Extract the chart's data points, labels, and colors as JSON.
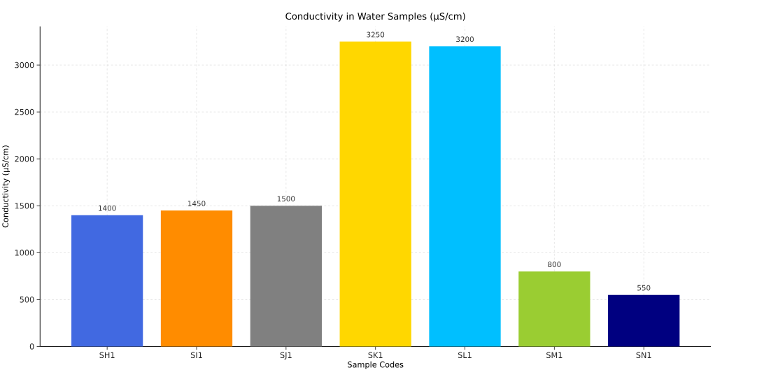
{
  "chart_data": {
    "type": "bar",
    "title": "Conductivity in Water Samples (µS/cm)",
    "xlabel": "Sample Codes",
    "ylabel": "Conductivity (µS/cm)",
    "categories": [
      "SH1",
      "SI1",
      "SJ1",
      "SK1",
      "SL1",
      "SM1",
      "SN1"
    ],
    "values": [
      1400,
      1450,
      1500,
      3250,
      3200,
      800,
      550
    ],
    "colors": [
      "#4169e1",
      "#ff8c00",
      "#808080",
      "#ffd700",
      "#00bfff",
      "#9acd32",
      "#000080"
    ],
    "ylim": [
      0,
      3412.5
    ],
    "yticks": [
      0,
      500,
      1000,
      1500,
      2000,
      2500,
      3000
    ],
    "grid": true,
    "data_labels": true
  }
}
